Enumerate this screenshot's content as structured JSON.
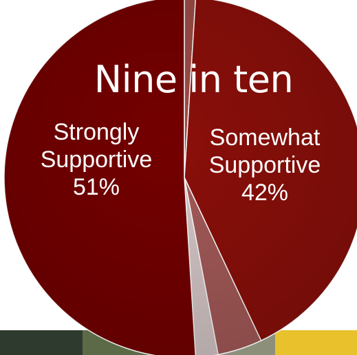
{
  "chart_data": {
    "type": "pie",
    "title": "Nine in ten",
    "slices": [
      {
        "label_lines": [
          "Somewhat",
          "Supportive",
          "42%"
        ],
        "value": 42,
        "color": "#8b0f0a"
      },
      {
        "label_lines": [],
        "value": 4,
        "color": "#a45a58"
      },
      {
        "label_lines": [],
        "value": 2,
        "color": "#d6c7c7"
      },
      {
        "label_lines": [
          "Strongly",
          "Supportive",
          "51%"
        ],
        "value": 51,
        "color": "#740000"
      }
    ],
    "start_slice_value": 1,
    "start_slice_color": "#9e4b47"
  },
  "colors": {
    "strip": [
      "#3a4a3a",
      "#7a8a5a",
      "#c7a24a",
      "#e7c230",
      "#f4d44a"
    ]
  }
}
